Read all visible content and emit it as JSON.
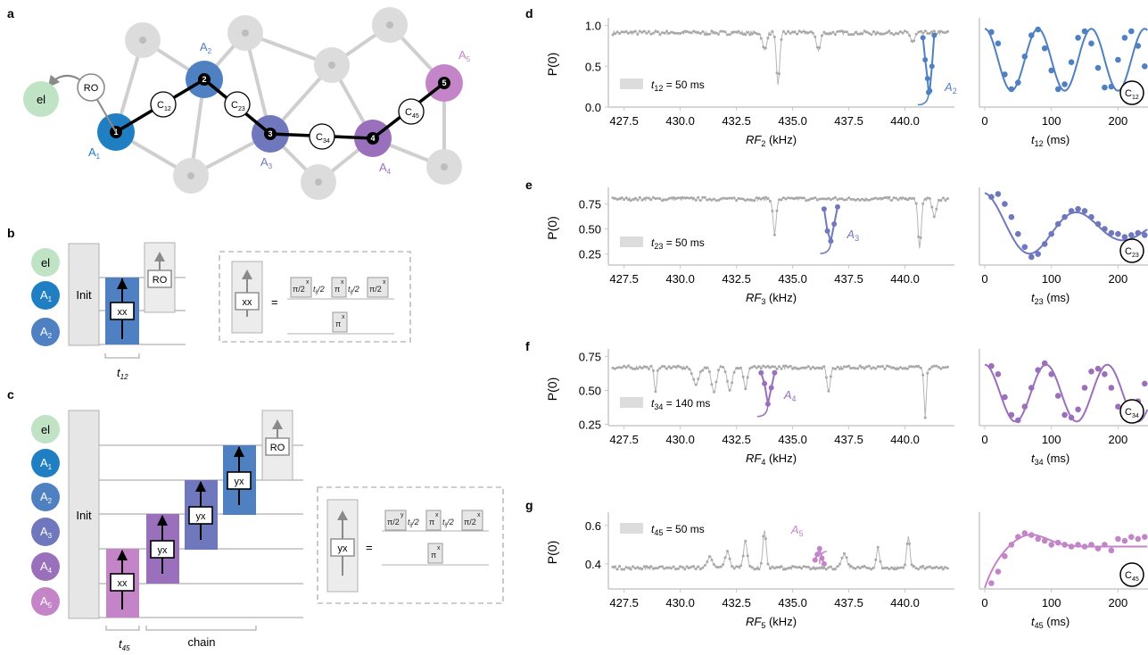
{
  "colors": {
    "gray": "#b8b8b8",
    "light_gray": "#dcdcdc",
    "el": "#bfe3c4",
    "a1": "#1f7fc2",
    "a2": "#4f80c2",
    "a3": "#7078bd",
    "a4": "#9a6fbc",
    "a5": "#c485c8"
  },
  "panel_labels": {
    "a": "a",
    "b": "b",
    "c": "c",
    "d": "d",
    "e": "e",
    "f": "f",
    "g": "g"
  },
  "panel_a": {
    "el": "el",
    "ro": "RO",
    "nodes": [
      "1",
      "2",
      "3",
      "4",
      "5"
    ],
    "spins": [
      {
        "base": "A",
        "sub": "1"
      },
      {
        "base": "A",
        "sub": "2"
      },
      {
        "base": "A",
        "sub": "3"
      },
      {
        "base": "A",
        "sub": "4"
      },
      {
        "base": "A",
        "sub": "5"
      }
    ],
    "couplings": [
      {
        "base": "C",
        "sub": "12"
      },
      {
        "base": "C",
        "sub": "23"
      },
      {
        "base": "C",
        "sub": "34"
      },
      {
        "base": "C",
        "sub": "45"
      }
    ]
  },
  "panel_b": {
    "rows": [
      {
        "base": "el",
        "sub": ""
      },
      {
        "base": "A",
        "sub": "1"
      },
      {
        "base": "A",
        "sub": "2"
      }
    ],
    "init": "Init",
    "gate": "xx",
    "ro": "RO",
    "time": {
      "base": "t",
      "sub": "12"
    },
    "eq": "=",
    "decomp_top": [
      {
        "text": "π/2",
        "sup": "x"
      },
      {
        "text": "t",
        "sub": "ij",
        "after": "/2"
      },
      {
        "text": "π",
        "sup": "x"
      },
      {
        "text": "t",
        "sub": "ij",
        "after": "/2"
      },
      {
        "text": "π/2",
        "sup": "x"
      }
    ],
    "decomp_bottom": {
      "text": "π",
      "sup": "x"
    }
  },
  "panel_c": {
    "rows": [
      {
        "base": "el",
        "sub": ""
      },
      {
        "base": "A",
        "sub": "1"
      },
      {
        "base": "A",
        "sub": "2"
      },
      {
        "base": "A",
        "sub": "3"
      },
      {
        "base": "A",
        "sub": "4"
      },
      {
        "base": "A",
        "sub": "5"
      }
    ],
    "init": "Init",
    "gates": [
      "xx",
      "yx",
      "yx",
      "yx"
    ],
    "ro": "RO",
    "time": {
      "base": "t",
      "sub": "45"
    },
    "chain": "chain",
    "eq": "=",
    "decomp_gate": "yx",
    "decomp_top": [
      {
        "text": "π/2",
        "sup": "y"
      },
      {
        "text": "t",
        "sub": "ij",
        "after": "/2"
      },
      {
        "text": "π",
        "sup": "x"
      },
      {
        "text": "t",
        "sub": "ij",
        "after": "/2"
      },
      {
        "text": "π/2",
        "sup": "x"
      }
    ],
    "decomp_bottom": {
      "text": "π",
      "sup": "x"
    }
  },
  "chart_data": [
    {
      "panel": "d",
      "type": "line",
      "title": "",
      "ylabel": "P(0)",
      "xlabel": {
        "base": "RF",
        "sub": "2",
        "unit": " (kHz)"
      },
      "xlim": [
        426.8,
        442.2
      ],
      "ylim": [
        0.0,
        1.05
      ],
      "xticks": [
        "427.5",
        "430.0",
        "432.5",
        "435.0",
        "437.5",
        "440.0"
      ],
      "xtick_values": [
        427.5,
        430.0,
        432.5,
        435.0,
        437.5,
        440.0
      ],
      "yticks": [
        "0.0",
        "0.5",
        "1.0"
      ],
      "ytick_values": [
        0.0,
        0.5,
        1.0
      ],
      "baseline": 0.91,
      "dips": [
        {
          "center": 433.75,
          "depth": 0.22,
          "width": 0.12
        },
        {
          "center": 434.35,
          "depth": 0.66,
          "width": 0.1
        },
        {
          "center": 436.15,
          "depth": 0.22,
          "width": 0.12
        },
        {
          "center": 440.35,
          "depth": 0.12,
          "width": 0.12
        }
      ],
      "legend": {
        "base": "t",
        "sub": "12",
        "text": " = 50 ms"
      },
      "highlight": {
        "label": {
          "base": "A",
          "sub": "2"
        },
        "x": [
          440.8,
          440.9,
          441.0,
          441.05,
          441.1,
          441.2,
          441.3
        ],
        "y": [
          0.85,
          0.58,
          0.35,
          0.18,
          0.2,
          0.5,
          0.88
        ]
      },
      "color": "#4f80c2"
    },
    {
      "panel": "d_right",
      "type": "line",
      "ylabel": "",
      "xlabel": {
        "base": "t",
        "sub": "12",
        "unit": " (ms)"
      },
      "xlim": [
        -8,
        245
      ],
      "ylim": [
        0.0,
        1.05
      ],
      "xticks": [
        "0",
        "100",
        "200"
      ],
      "xtick_values": [
        0,
        100,
        200
      ],
      "model": {
        "offset": 0.58,
        "amp": 0.38,
        "period": 80,
        "decay": 0
      },
      "x": [
        10,
        20,
        30,
        40,
        50,
        60,
        70,
        80,
        90,
        100,
        110,
        120,
        130,
        140,
        150,
        160,
        170,
        180,
        190,
        200,
        210,
        220,
        230,
        240
      ],
      "y": [
        0.92,
        0.78,
        0.4,
        0.22,
        0.3,
        0.62,
        0.88,
        0.95,
        0.72,
        0.45,
        0.22,
        0.28,
        0.55,
        0.85,
        0.93,
        0.78,
        0.48,
        0.24,
        0.25,
        0.58,
        0.85,
        0.93,
        0.75,
        0.5
      ],
      "inset": {
        "base": "C",
        "sub": "12"
      },
      "color": "#4f80c2"
    },
    {
      "panel": "e",
      "type": "line",
      "ylabel": "P(0)",
      "xlabel": {
        "base": "RF",
        "sub": "3",
        "unit": " (kHz)"
      },
      "xlim": [
        426.8,
        442.2
      ],
      "ylim": [
        0.14,
        0.88
      ],
      "xticks": [
        "427.5",
        "430.0",
        "432.5",
        "435.0",
        "437.5",
        "440.0"
      ],
      "xtick_values": [
        427.5,
        430.0,
        432.5,
        435.0,
        437.5,
        440.0
      ],
      "yticks": [
        "0.25",
        "0.50",
        "0.75"
      ],
      "ytick_values": [
        0.25,
        0.5,
        0.75
      ],
      "baseline": 0.8,
      "dips": [
        {
          "center": 434.2,
          "depth": 0.35,
          "width": 0.1
        },
        {
          "center": 440.65,
          "depth": 0.5,
          "width": 0.1
        },
        {
          "center": 441.3,
          "depth": 0.18,
          "width": 0.12
        }
      ],
      "legend": {
        "base": "t",
        "sub": "23",
        "text": " = 50 ms"
      },
      "highlight": {
        "label": {
          "base": "A",
          "sub": "3"
        },
        "x": [
          436.4,
          436.55,
          436.7,
          436.85,
          437.0
        ],
        "y": [
          0.7,
          0.48,
          0.38,
          0.55,
          0.72
        ]
      },
      "color": "#7078bd"
    },
    {
      "panel": "e_right",
      "type": "line",
      "ylabel": "",
      "xlabel": {
        "base": "t",
        "sub": "23",
        "unit": " (ms)"
      },
      "xlim": [
        -8,
        245
      ],
      "ylim": [
        0.14,
        0.88
      ],
      "xticks": [
        "0",
        "100",
        "200"
      ],
      "xtick_values": [
        0,
        100,
        200
      ],
      "model": {
        "offset": 0.5,
        "amp": 0.36,
        "period": 140,
        "decay": 180
      },
      "x": [
        10,
        20,
        30,
        40,
        50,
        60,
        70,
        80,
        90,
        100,
        110,
        120,
        130,
        140,
        150,
        160,
        170,
        180,
        190,
        200,
        210,
        220,
        230,
        240
      ],
      "y": [
        0.82,
        0.85,
        0.75,
        0.62,
        0.45,
        0.32,
        0.22,
        0.25,
        0.35,
        0.45,
        0.55,
        0.62,
        0.68,
        0.7,
        0.68,
        0.62,
        0.55,
        0.5,
        0.46,
        0.45,
        0.42,
        0.44,
        0.46,
        0.44
      ],
      "inset": {
        "base": "C",
        "sub": "23"
      },
      "color": "#7078bd"
    },
    {
      "panel": "f",
      "type": "line",
      "ylabel": "P(0)",
      "xlabel": {
        "base": "RF",
        "sub": "4",
        "unit": " (kHz)"
      },
      "xlim": [
        426.8,
        442.2
      ],
      "ylim": [
        0.24,
        0.78
      ],
      "xticks": [
        "427.5",
        "430.0",
        "432.5",
        "435.0",
        "437.5",
        "440.0"
      ],
      "xtick_values": [
        427.5,
        430.0,
        432.5,
        435.0,
        437.5,
        440.0
      ],
      "yticks": [
        "0.25",
        "0.50",
        "0.75"
      ],
      "ytick_values": [
        0.25,
        0.5,
        0.75
      ],
      "baseline": 0.67,
      "dips": [
        {
          "center": 428.9,
          "depth": 0.17,
          "width": 0.08
        },
        {
          "center": 430.7,
          "depth": 0.12,
          "width": 0.2
        },
        {
          "center": 431.5,
          "depth": 0.18,
          "width": 0.15
        },
        {
          "center": 432.2,
          "depth": 0.16,
          "width": 0.15
        },
        {
          "center": 432.9,
          "depth": 0.15,
          "width": 0.12
        },
        {
          "center": 436.6,
          "depth": 0.18,
          "width": 0.1
        },
        {
          "center": 440.9,
          "depth": 0.36,
          "width": 0.07
        }
      ],
      "legend": {
        "base": "t",
        "sub": "34",
        "text": " = 140 ms"
      },
      "highlight": {
        "label": {
          "base": "A",
          "sub": "4"
        },
        "x": [
          433.6,
          433.75,
          433.9,
          434.05,
          434.2
        ],
        "y": [
          0.63,
          0.55,
          0.4,
          0.52,
          0.63
        ]
      },
      "color": "#9a6fbc"
    },
    {
      "panel": "f_right",
      "type": "line",
      "ylabel": "",
      "xlabel": {
        "base": "t",
        "sub": "34",
        "unit": " (ms)"
      },
      "xlim": [
        -8,
        245
      ],
      "ylim": [
        0.24,
        0.78
      ],
      "model": {
        "offset": 0.48,
        "amp": 0.21,
        "period": 92,
        "decay": 0
      },
      "xticks": [
        "0",
        "100",
        "200"
      ],
      "xtick_values": [
        0,
        100,
        200
      ],
      "x": [
        10,
        20,
        30,
        40,
        50,
        60,
        70,
        80,
        90,
        100,
        110,
        120,
        130,
        140,
        150,
        160,
        170,
        180,
        190,
        200,
        210,
        220,
        230,
        240
      ],
      "y": [
        0.68,
        0.62,
        0.45,
        0.32,
        0.28,
        0.38,
        0.52,
        0.65,
        0.7,
        0.62,
        0.46,
        0.32,
        0.3,
        0.36,
        0.52,
        0.64,
        0.66,
        0.62,
        0.52,
        0.38,
        0.32,
        0.34,
        0.42,
        0.55
      ],
      "inset": {
        "base": "C",
        "sub": "34"
      },
      "color": "#9a6fbc"
    },
    {
      "panel": "g",
      "type": "line",
      "ylabel": "P(0)",
      "xlabel": {
        "base": "RF",
        "sub": "5",
        "unit": " (kHz)"
      },
      "xlim": [
        426.8,
        442.2
      ],
      "ylim": [
        0.27,
        0.65
      ],
      "xticks": [
        "427.5",
        "430.0",
        "432.5",
        "435.0",
        "437.5",
        "440.0"
      ],
      "xtick_values": [
        427.5,
        430.0,
        432.5,
        435.0,
        437.5,
        440.0
      ],
      "yticks": [
        "0.4",
        "0.6"
      ],
      "ytick_values": [
        0.4,
        0.6
      ],
      "baseline": 0.38,
      "peaks": [
        {
          "center": 431.3,
          "height": 0.06,
          "width": 0.15
        },
        {
          "center": 432.1,
          "height": 0.08,
          "width": 0.15
        },
        {
          "center": 432.9,
          "height": 0.14,
          "width": 0.12
        },
        {
          "center": 433.75,
          "height": 0.2,
          "width": 0.1
        },
        {
          "center": 437.3,
          "height": 0.07,
          "width": 0.15
        },
        {
          "center": 438.8,
          "height": 0.1,
          "width": 0.1
        },
        {
          "center": 440.15,
          "height": 0.16,
          "width": 0.1
        }
      ],
      "legend": {
        "base": "t",
        "sub": "45",
        "text": " = 50 ms"
      },
      "highlight": {
        "label": {
          "base": "A",
          "sub": "5"
        },
        "x": [
          436.0,
          436.1,
          436.2,
          436.3,
          436.4
        ],
        "y": [
          0.42,
          0.45,
          0.48,
          0.43,
          0.4
        ]
      },
      "color": "#c485c8"
    },
    {
      "panel": "g_right",
      "type": "line",
      "ylabel": "",
      "xlabel": {
        "base": "t",
        "sub": "45",
        "unit": " (ms)"
      },
      "xlim": [
        -8,
        245
      ],
      "ylim": [
        0.27,
        0.65
      ],
      "model": {
        "offset": 0.49,
        "amp": 0.0,
        "period": 100,
        "decay": 0
      },
      "xticks": [
        "0",
        "100",
        "200"
      ],
      "xtick_values": [
        0,
        100,
        200
      ],
      "x": [
        10,
        20,
        30,
        40,
        50,
        60,
        70,
        80,
        90,
        100,
        110,
        120,
        130,
        140,
        150,
        160,
        170,
        180,
        190,
        200,
        210,
        220,
        230,
        240
      ],
      "y": [
        0.3,
        0.36,
        0.44,
        0.5,
        0.54,
        0.56,
        0.55,
        0.53,
        0.52,
        0.5,
        0.51,
        0.5,
        0.49,
        0.5,
        0.49,
        0.5,
        0.48,
        0.5,
        0.47,
        0.53,
        0.52,
        0.54,
        0.53,
        0.54
      ],
      "inset": {
        "base": "C",
        "sub": "45"
      },
      "color": "#c485c8"
    }
  ]
}
